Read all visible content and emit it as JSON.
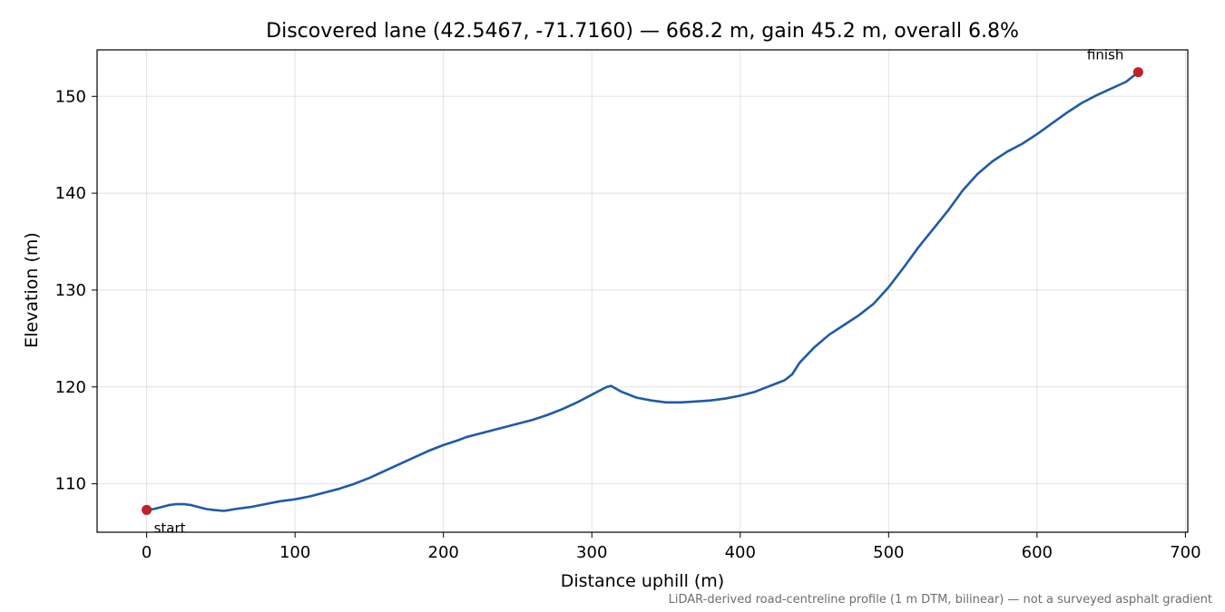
{
  "chart_data": {
    "type": "line",
    "title": "Discovered lane (42.5467, -71.7160) — 668.2 m, gain 45.2 m, overall 6.8%",
    "xlabel": "Distance uphill (m)",
    "ylabel": "Elevation (m)",
    "xlim": [
      -33.4,
      701.6
    ],
    "ylim": [
      105.0,
      154.8
    ],
    "xticks": [
      0,
      100,
      200,
      300,
      400,
      500,
      600,
      700
    ],
    "yticks": [
      110,
      120,
      130,
      140,
      150
    ],
    "grid": true,
    "line_color": "#1f5aa8",
    "marker_color": "#c0202a",
    "series": [
      {
        "x": [
          0,
          5,
          10,
          15,
          20,
          25,
          30,
          35,
          40,
          45,
          52,
          60,
          70,
          80,
          90,
          100,
          110,
          115,
          120,
          130,
          140,
          150,
          160,
          170,
          180,
          190,
          200,
          210,
          215,
          220,
          230,
          240,
          250,
          260,
          270,
          280,
          290,
          300,
          305,
          310,
          313,
          320,
          330,
          340,
          350,
          360,
          370,
          380,
          390,
          400,
          410,
          420,
          425,
          430,
          435,
          440,
          450,
          460,
          470,
          480,
          490,
          500,
          510,
          520,
          530,
          540,
          550,
          560,
          570,
          580,
          590,
          600,
          610,
          620,
          630,
          640,
          650,
          660,
          668.2
        ],
        "y": [
          107.3,
          107.4,
          107.6,
          107.8,
          107.9,
          107.9,
          107.8,
          107.6,
          107.4,
          107.3,
          107.2,
          107.4,
          107.6,
          107.9,
          108.2,
          108.4,
          108.7,
          108.9,
          109.1,
          109.5,
          110.0,
          110.6,
          111.3,
          112.0,
          112.7,
          113.4,
          114.0,
          114.5,
          114.8,
          115.0,
          115.4,
          115.8,
          116.2,
          116.6,
          117.1,
          117.7,
          118.4,
          119.2,
          119.6,
          120.0,
          120.1,
          119.5,
          118.9,
          118.6,
          118.4,
          118.4,
          118.5,
          118.6,
          118.8,
          119.1,
          119.5,
          120.1,
          120.4,
          120.7,
          121.3,
          122.5,
          124.1,
          125.4,
          126.4,
          127.4,
          128.6,
          130.3,
          132.3,
          134.4,
          136.3,
          138.2,
          140.3,
          142.0,
          143.3,
          144.3,
          145.1,
          146.1,
          147.2,
          148.3,
          149.3,
          150.1,
          150.8,
          151.5,
          152.5
        ]
      }
    ],
    "points": [
      {
        "label": "start",
        "x": 0,
        "y": 107.3
      },
      {
        "label": "finish",
        "x": 668.2,
        "y": 152.5
      }
    ],
    "footnote": "LiDAR-derived road-centreline profile (1 m DTM, bilinear) — not a surveyed asphalt gradient"
  }
}
